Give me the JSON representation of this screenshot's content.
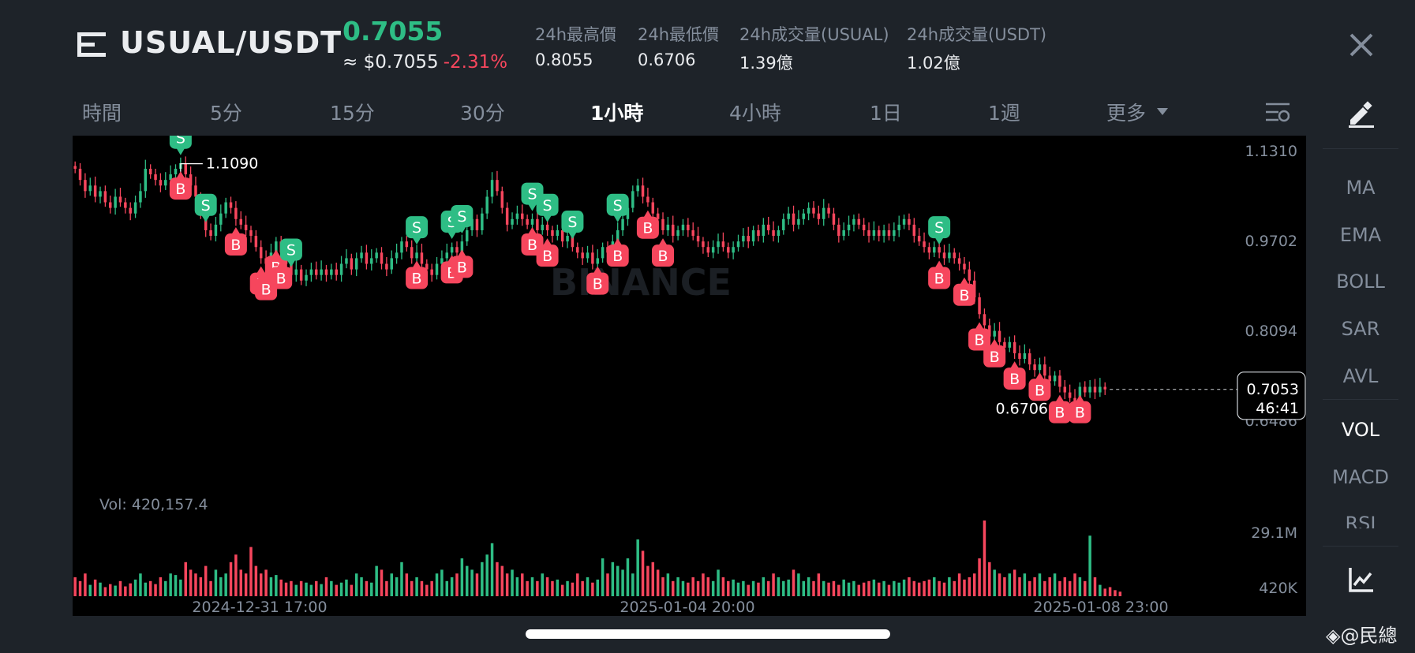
{
  "header": {
    "pair": "USUAL/USDT",
    "price": "0.7055",
    "approx_price": "≈ $0.7055",
    "change": "-2.31%",
    "stats": [
      {
        "label": "24h最高價",
        "value": "0.8055"
      },
      {
        "label": "24h最低價",
        "value": "0.6706"
      },
      {
        "label": "24h成交量(USUAL)",
        "value": "1.39億"
      },
      {
        "label": "24h成交量(USDT)",
        "value": "1.02億"
      }
    ],
    "icons": {
      "menu": "menu-icon",
      "close": "close-icon"
    }
  },
  "tabs": {
    "time": "時間",
    "m5": "5分",
    "m15": "15分",
    "m30": "30分",
    "h1": "1小時",
    "h4": "4小時",
    "d1": "1日",
    "w1": "1週",
    "more": "更多",
    "active": "1小時"
  },
  "indicators": {
    "items": [
      "MA",
      "EMA",
      "BOLL",
      "SAR",
      "AVL",
      "VOL",
      "MACD",
      "RSI"
    ],
    "active": "VOL"
  },
  "colors": {
    "up": "#2ebd85",
    "down": "#f6465d",
    "background": "#1e2329",
    "chart_bg": "#000000",
    "muted": "#848e9c"
  },
  "chart_data": {
    "type": "candlestick",
    "watermark": "BINANCE",
    "price_axis": [
      "1.1310",
      "0.9702",
      "0.8094",
      "0.6486"
    ],
    "price_range": [
      0.6486,
      1.131
    ],
    "current_price_label": "0.7053",
    "countdown": "46:41",
    "high_marker": "1.1090",
    "low_marker": "0.6706",
    "volume_label": "Vol: 420,157.4",
    "volume_axis": [
      "29.1M",
      "420K"
    ],
    "x_labels": [
      "2024-12-31 17:00",
      "2025-01-04 20:00",
      "2025-01-08 23:00"
    ],
    "closes": [
      1.1,
      1.08,
      1.06,
      1.07,
      1.05,
      1.06,
      1.04,
      1.03,
      1.05,
      1.04,
      1.03,
      1.02,
      1.04,
      1.06,
      1.1,
      1.09,
      1.08,
      1.07,
      1.08,
      1.09,
      1.1,
      1.11,
      1.09,
      1.07,
      1.05,
      1.02,
      0.99,
      0.98,
      1.0,
      1.02,
      1.04,
      1.03,
      1.01,
      1.0,
      0.99,
      0.98,
      0.96,
      0.94,
      0.93,
      0.95,
      0.97,
      0.95,
      0.93,
      0.91,
      0.92,
      0.9,
      0.91,
      0.92,
      0.91,
      0.92,
      0.91,
      0.92,
      0.91,
      0.93,
      0.94,
      0.92,
      0.94,
      0.95,
      0.93,
      0.94,
      0.95,
      0.93,
      0.92,
      0.94,
      0.95,
      0.97,
      0.96,
      0.94,
      0.95,
      0.93,
      0.92,
      0.91,
      0.93,
      0.94,
      0.95,
      0.96,
      0.95,
      0.97,
      0.99,
      1.01,
      0.99,
      1.02,
      1.05,
      1.08,
      1.06,
      1.03,
      1.0,
      1.01,
      1.02,
      1.01,
      1.0,
      1.01,
      0.99,
      1.0,
      0.99,
      0.98,
      0.99,
      0.97,
      0.98,
      0.96,
      0.95,
      0.94,
      0.95,
      0.93,
      0.94,
      0.96,
      0.95,
      0.97,
      0.99,
      1.01,
      1.03,
      1.06,
      1.07,
      1.05,
      1.04,
      1.02,
      1.01,
      0.99,
      1.0,
      0.98,
      0.99,
      1.0,
      0.99,
      0.98,
      0.97,
      0.96,
      0.95,
      0.96,
      0.97,
      0.96,
      0.95,
      0.96,
      0.97,
      0.98,
      0.97,
      0.99,
      0.98,
      1.0,
      0.99,
      0.98,
      0.99,
      1.01,
      1.02,
      1.0,
      1.01,
      1.02,
      1.03,
      1.02,
      1.01,
      1.03,
      1.02,
      1.0,
      0.98,
      0.99,
      1.0,
      1.01,
      1.0,
      0.99,
      0.98,
      0.99,
      0.98,
      0.99,
      0.98,
      0.99,
      1.0,
      1.01,
      1.0,
      0.98,
      0.97,
      0.96,
      0.95,
      0.96,
      0.95,
      0.94,
      0.95,
      0.94,
      0.93,
      0.92,
      0.9,
      0.87,
      0.84,
      0.82,
      0.8,
      0.81,
      0.79,
      0.78,
      0.79,
      0.77,
      0.76,
      0.77,
      0.75,
      0.74,
      0.75,
      0.73,
      0.72,
      0.73,
      0.71,
      0.7,
      0.69,
      0.68,
      0.71,
      0.7,
      0.71,
      0.7,
      0.71,
      0.7053
    ],
    "volumes": [
      0.25,
      0.2,
      0.3,
      0.15,
      0.22,
      0.18,
      0.12,
      0.16,
      0.14,
      0.2,
      0.13,
      0.17,
      0.22,
      0.3,
      0.18,
      0.2,
      0.16,
      0.25,
      0.2,
      0.3,
      0.28,
      0.22,
      0.45,
      0.35,
      0.3,
      0.25,
      0.4,
      0.2,
      0.35,
      0.25,
      0.3,
      0.45,
      0.55,
      0.35,
      0.3,
      0.65,
      0.4,
      0.3,
      0.35,
      0.25,
      0.28,
      0.22,
      0.18,
      0.2,
      0.15,
      0.2,
      0.18,
      0.15,
      0.2,
      0.16,
      0.25,
      0.2,
      0.15,
      0.18,
      0.22,
      0.15,
      0.3,
      0.25,
      0.2,
      0.18,
      0.4,
      0.35,
      0.2,
      0.3,
      0.25,
      0.45,
      0.3,
      0.2,
      0.25,
      0.2,
      0.15,
      0.2,
      0.3,
      0.35,
      0.2,
      0.25,
      0.3,
      0.5,
      0.4,
      0.35,
      0.3,
      0.45,
      0.55,
      0.7,
      0.45,
      0.4,
      0.3,
      0.35,
      0.25,
      0.3,
      0.2,
      0.25,
      0.2,
      0.3,
      0.25,
      0.2,
      0.22,
      0.15,
      0.2,
      0.18,
      0.3,
      0.2,
      0.25,
      0.18,
      0.22,
      0.5,
      0.3,
      0.45,
      0.4,
      0.35,
      0.5,
      0.3,
      0.75,
      0.6,
      0.4,
      0.45,
      0.35,
      0.25,
      0.3,
      0.2,
      0.25,
      0.2,
      0.18,
      0.25,
      0.2,
      0.3,
      0.25,
      0.2,
      0.35,
      0.25,
      0.2,
      0.22,
      0.18,
      0.2,
      0.15,
      0.2,
      0.18,
      0.25,
      0.2,
      0.3,
      0.25,
      0.2,
      0.22,
      0.35,
      0.3,
      0.2,
      0.25,
      0.2,
      0.3,
      0.2,
      0.18,
      0.2,
      0.15,
      0.22,
      0.18,
      0.2,
      0.15,
      0.18,
      0.2,
      0.22,
      0.18,
      0.2,
      0.15,
      0.2,
      0.18,
      0.22,
      0.25,
      0.2,
      0.18,
      0.2,
      0.22,
      0.25,
      0.2,
      0.18,
      0.25,
      0.2,
      0.3,
      0.22,
      0.25,
      0.3,
      0.5,
      1.0,
      0.45,
      0.35,
      0.3,
      0.25,
      0.3,
      0.35,
      0.25,
      0.3,
      0.2,
      0.25,
      0.3,
      0.2,
      0.25,
      0.3,
      0.2,
      0.25,
      0.2,
      0.3,
      0.25,
      0.2,
      0.8,
      0.25,
      0.15,
      0.1,
      0.12,
      0.08,
      0.06
    ],
    "trade_markers": [
      {
        "type": "S",
        "i": 21
      },
      {
        "type": "S",
        "i": 26
      },
      {
        "type": "B",
        "i": 21
      },
      {
        "type": "B",
        "i": 32
      },
      {
        "type": "B",
        "i": 37
      },
      {
        "type": "B",
        "i": 38
      },
      {
        "type": "B",
        "i": 40
      },
      {
        "type": "B",
        "i": 41
      },
      {
        "type": "S",
        "i": 43
      },
      {
        "type": "S",
        "i": 68
      },
      {
        "type": "B",
        "i": 68
      },
      {
        "type": "S",
        "i": 75
      },
      {
        "type": "S",
        "i": 77
      },
      {
        "type": "B",
        "i": 75
      },
      {
        "type": "B",
        "i": 77
      },
      {
        "type": "S",
        "i": 91
      },
      {
        "type": "B",
        "i": 91
      },
      {
        "type": "B",
        "i": 94
      },
      {
        "type": "S",
        "i": 94
      },
      {
        "type": "S",
        "i": 99
      },
      {
        "type": "B",
        "i": 114
      },
      {
        "type": "B",
        "i": 117
      },
      {
        "type": "S",
        "i": 108
      },
      {
        "type": "B",
        "i": 104
      },
      {
        "type": "B",
        "i": 108
      },
      {
        "type": "S",
        "i": 172
      },
      {
        "type": "B",
        "i": 172
      },
      {
        "type": "B",
        "i": 177
      },
      {
        "type": "B",
        "i": 180
      },
      {
        "type": "B",
        "i": 183
      },
      {
        "type": "B",
        "i": 187
      },
      {
        "type": "B",
        "i": 192
      },
      {
        "type": "B",
        "i": 196
      },
      {
        "type": "B",
        "i": 200
      }
    ]
  },
  "watermark_text": "@民總"
}
